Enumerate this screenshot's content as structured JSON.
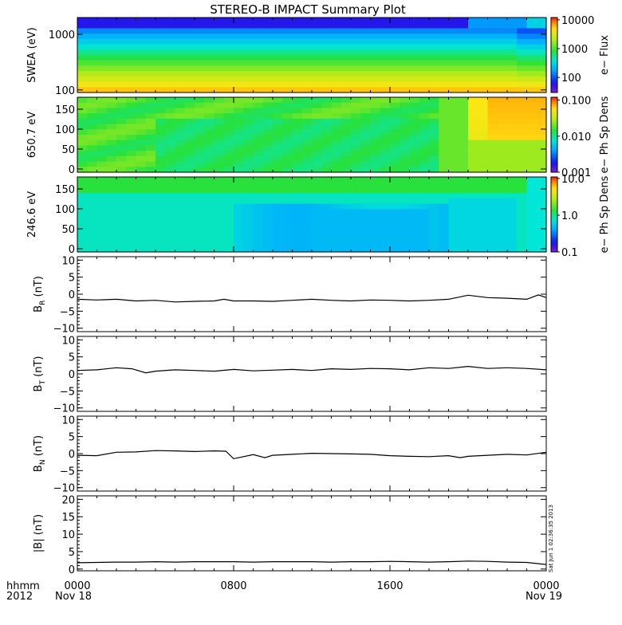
{
  "chart_data": {
    "type": "stacked-timeseries",
    "title": "STEREO-B IMPACT Summary Plot",
    "x_axis": {
      "ticks": [
        "0000",
        "0800",
        "1600",
        "0000"
      ],
      "tick_hours": [
        0,
        8,
        16,
        24
      ],
      "date_labels": [
        "Nov 18",
        "Nov 19"
      ],
      "corner_labels": [
        "hhmm",
        "2012"
      ]
    },
    "side_stamp": "Sat Jun 1 02:36:35 2013",
    "spectrograms": [
      {
        "ylabel": "SWEA (eV)",
        "cbar_label": "e− Flux",
        "yscale": "log",
        "ylim": [
          90,
          2000
        ],
        "yticks": [
          "1000",
          "100"
        ],
        "ytick_values": [
          1000,
          100
        ],
        "cbar_ticks": [
          "10000",
          "1000",
          "100"
        ],
        "cbar_tick_values": [
          10000,
          1000,
          100
        ],
        "clim": [
          30,
          12000
        ],
        "cscale": "log"
      },
      {
        "ylabel": "650.7 eV",
        "cbar_label": "e− Ph Sp Dens",
        "yscale": "linear",
        "ylim": [
          -8,
          180
        ],
        "yticks": [
          "150",
          "100",
          "50",
          "0"
        ],
        "ytick_values": [
          150,
          100,
          50,
          0
        ],
        "cbar_ticks": [
          "0.100",
          "0.010",
          "0.001"
        ],
        "cbar_tick_values": [
          0.1,
          0.01,
          0.001
        ],
        "clim": [
          0.001,
          0.12
        ],
        "cscale": "log"
      },
      {
        "ylabel": "246.6 eV",
        "cbar_label": "e− Ph Sp Dens",
        "yscale": "linear",
        "ylim": [
          -8,
          180
        ],
        "yticks": [
          "150",
          "100",
          "50",
          "0"
        ],
        "ytick_values": [
          150,
          100,
          50,
          0
        ],
        "cbar_ticks": [
          "10.0",
          "1.0",
          "0.1"
        ],
        "cbar_tick_values": [
          10,
          1,
          0.1
        ],
        "clim": [
          0.1,
          11
        ],
        "cscale": "log"
      }
    ],
    "line_panels": [
      {
        "ylabel_base": "B",
        "ylabel_sub": "R",
        "ylabel_unit": " (nT)",
        "ylim": [
          -11,
          11
        ],
        "yticks": [
          "10",
          "5",
          "0",
          "−5",
          "−10"
        ],
        "ytick_values": [
          10,
          5,
          0,
          -5,
          -10
        ],
        "x": [
          0,
          1,
          2,
          3,
          4,
          5,
          6,
          7,
          7.5,
          8,
          9,
          10,
          11,
          12,
          13,
          14,
          15,
          16,
          17,
          18,
          19,
          20,
          21,
          22,
          23,
          23.6,
          24
        ],
        "y": [
          -1.5,
          -1.7,
          -1.5,
          -2.0,
          -1.8,
          -2.3,
          -2.1,
          -2.0,
          -1.5,
          -2.0,
          -2.0,
          -2.1,
          -1.8,
          -1.5,
          -1.8,
          -2.0,
          -1.7,
          -1.8,
          -2.0,
          -1.8,
          -1.5,
          -0.3,
          -1.0,
          -1.2,
          -1.5,
          -0.2,
          -1.0
        ]
      },
      {
        "ylabel_base": "B",
        "ylabel_sub": "T",
        "ylabel_unit": " (nT)",
        "ylim": [
          -11,
          11
        ],
        "yticks": [
          "10",
          "5",
          "0",
          "−5",
          "−10"
        ],
        "ytick_values": [
          10,
          5,
          0,
          -5,
          -10
        ],
        "x": [
          0,
          1,
          2,
          2.8,
          3.5,
          4,
          5,
          6,
          7,
          8,
          9,
          10,
          11,
          12,
          13,
          14,
          15,
          16,
          17,
          18,
          19,
          20,
          21,
          22,
          23,
          24
        ],
        "y": [
          1.0,
          1.2,
          1.8,
          1.5,
          0.3,
          0.8,
          1.2,
          1.0,
          0.8,
          1.3,
          0.9,
          1.1,
          1.3,
          1.0,
          1.5,
          1.3,
          1.6,
          1.5,
          1.2,
          1.8,
          1.6,
          2.2,
          1.6,
          1.8,
          1.6,
          1.2
        ]
      },
      {
        "ylabel_base": "B",
        "ylabel_sub": "N",
        "ylabel_unit": " (nT)",
        "ylim": [
          -11,
          11
        ],
        "yticks": [
          "10",
          "5",
          "0",
          "−5",
          "−10"
        ],
        "ytick_values": [
          10,
          5,
          0,
          -5,
          -10
        ],
        "x": [
          0,
          1,
          2,
          3,
          4,
          5,
          6,
          7,
          7.6,
          8,
          9,
          9.6,
          10,
          11,
          12,
          13,
          14,
          15,
          16,
          17,
          18,
          19,
          19.6,
          20,
          21,
          22,
          23,
          24
        ],
        "y": [
          -0.5,
          -0.6,
          0.4,
          0.5,
          0.9,
          0.8,
          0.6,
          0.8,
          0.7,
          -1.5,
          -0.3,
          -1.2,
          -0.5,
          -0.2,
          0.1,
          0.0,
          -0.1,
          -0.2,
          -0.6,
          -0.8,
          -0.9,
          -0.6,
          -1.2,
          -0.8,
          -0.5,
          -0.2,
          -0.4,
          0.4
        ]
      },
      {
        "ylabel_base": "|B|",
        "ylabel_sub": "",
        "ylabel_unit": " (nT)",
        "ylim": [
          -0.5,
          21
        ],
        "yticks": [
          "20",
          "15",
          "10",
          "5",
          "0"
        ],
        "ytick_values": [
          20,
          15,
          10,
          5,
          0
        ],
        "x": [
          0,
          1,
          2,
          3,
          4,
          5,
          6,
          7,
          8,
          9,
          10,
          11,
          12,
          13,
          14,
          15,
          16,
          17,
          18,
          19,
          20,
          21,
          22,
          23,
          24
        ],
        "y": [
          1.8,
          1.9,
          2.0,
          2.0,
          2.1,
          2.0,
          2.1,
          2.1,
          2.1,
          2.0,
          2.1,
          2.1,
          2.1,
          2.0,
          2.1,
          2.1,
          2.2,
          2.1,
          2.0,
          2.1,
          2.3,
          2.2,
          2.0,
          1.9,
          1.3
        ]
      }
    ]
  }
}
